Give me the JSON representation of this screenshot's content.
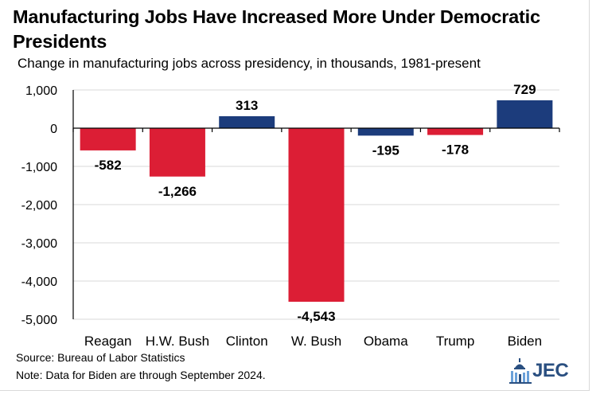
{
  "header": {
    "title": "Manufacturing Jobs Have Increased More Under Democratic Presidents",
    "subtitle": "Change in manufacturing jobs across presidency, in thousands, 1981-present"
  },
  "footer": {
    "source": "Source: Bureau of Labor Statistics",
    "note": "Note: Data for Biden are through September 2024.",
    "logo_text": "JEC"
  },
  "colors": {
    "republican": "#dc1e35",
    "democrat": "#1c3c7c"
  },
  "chart_data": {
    "type": "bar",
    "title": "Manufacturing Jobs Have Increased More Under Democratic Presidents",
    "subtitle": "Change in manufacturing jobs across presidency, in thousands, 1981-present",
    "categories": [
      "Reagan",
      "H.W. Bush",
      "Clinton",
      "W. Bush",
      "Obama",
      "Trump",
      "Biden"
    ],
    "values": [
      -582,
      -1266,
      313,
      -4543,
      -195,
      -178,
      729
    ],
    "data_labels": [
      "-582",
      "-1,266",
      "313",
      "-4,543",
      "-195",
      "-178",
      "729"
    ],
    "party": [
      "republican",
      "republican",
      "democrat",
      "republican",
      "democrat",
      "republican",
      "democrat"
    ],
    "ylim": [
      -5000,
      1000
    ],
    "yticks": [
      1000,
      0,
      -1000,
      -2000,
      -3000,
      -4000,
      -5000
    ],
    "ytick_labels": [
      "1,000",
      "0",
      "-1,000",
      "-2,000",
      "-3,000",
      "-4,000",
      "-5,000"
    ],
    "grid": true,
    "legend": "none"
  }
}
